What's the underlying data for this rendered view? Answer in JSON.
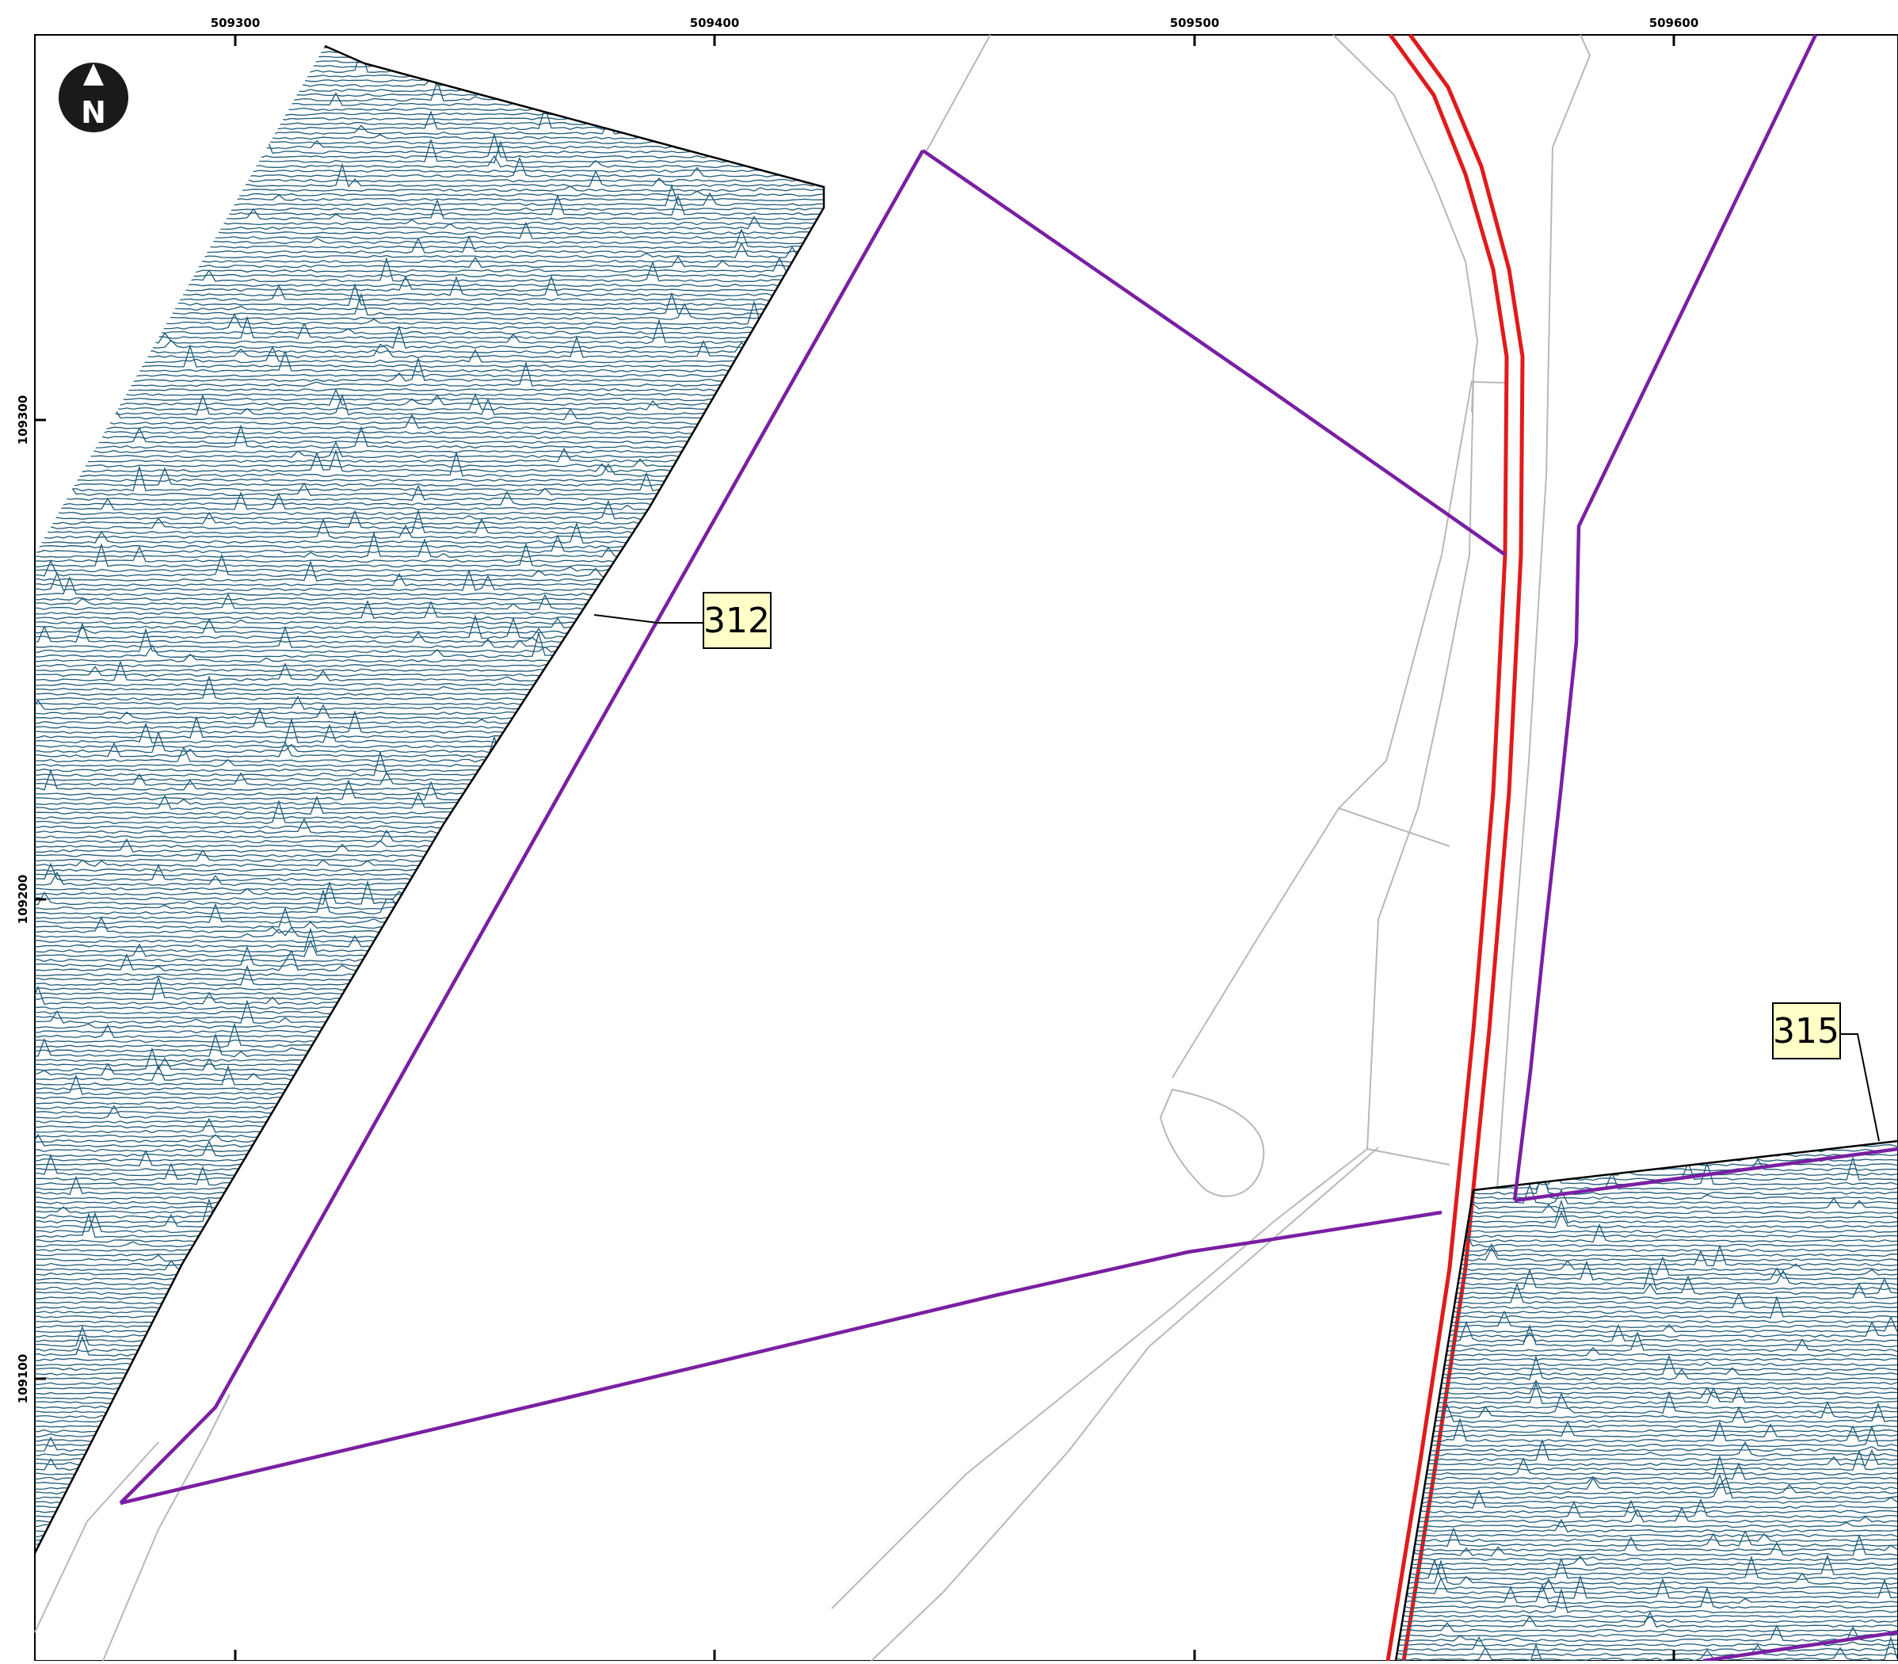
{
  "map": {
    "grid_labels": {
      "easting": [
        "509300",
        "509400",
        "509500",
        "509600"
      ],
      "northing": [
        "109300",
        "109200",
        "109100"
      ]
    },
    "north_arrow": {
      "label": "N"
    },
    "callouts": [
      {
        "label": "312"
      },
      {
        "label": "315"
      }
    ]
  },
  "colors": {
    "trace": "#1f5b78",
    "boundary": "#7a1fa2",
    "road": "#e01b1b",
    "background_line": "#b8b8b8",
    "callout_fill": "#ffffc8"
  },
  "icons": [
    "north-arrow-icon"
  ]
}
